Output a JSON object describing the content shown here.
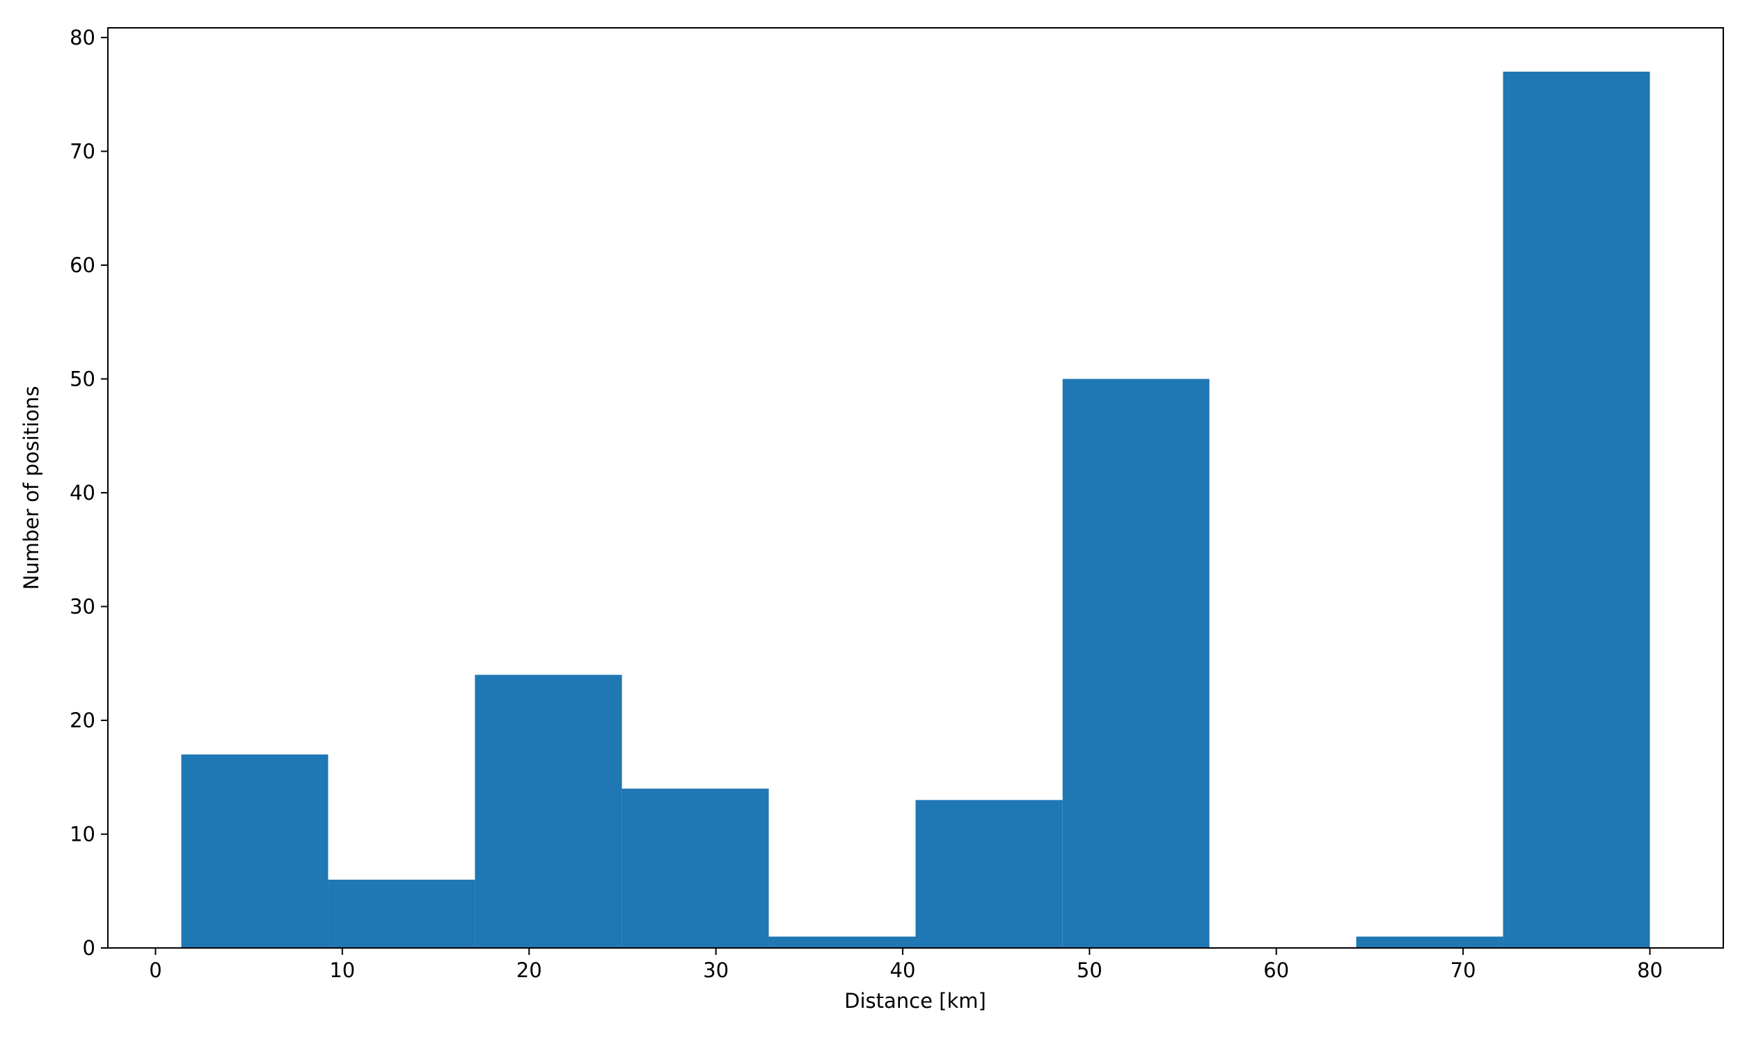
{
  "chart_data": {
    "type": "histogram",
    "xlabel": "Distance [km]",
    "ylabel": "Number of positions",
    "bins": [
      1.38,
      9.24,
      17.1,
      24.97,
      32.83,
      40.69,
      48.56,
      56.42,
      64.28,
      72.14,
      80.0
    ],
    "values": [
      17,
      6,
      24,
      14,
      1,
      13,
      50,
      0,
      1,
      77
    ],
    "color": "#1f77b4",
    "xlim": [
      -2.55,
      83.93
    ],
    "ylim": [
      0,
      80.85
    ],
    "xticks": [
      0,
      10,
      20,
      30,
      40,
      50,
      60,
      70,
      80
    ],
    "yticks": [
      0,
      10,
      20,
      30,
      40,
      50,
      60,
      70,
      80
    ]
  }
}
